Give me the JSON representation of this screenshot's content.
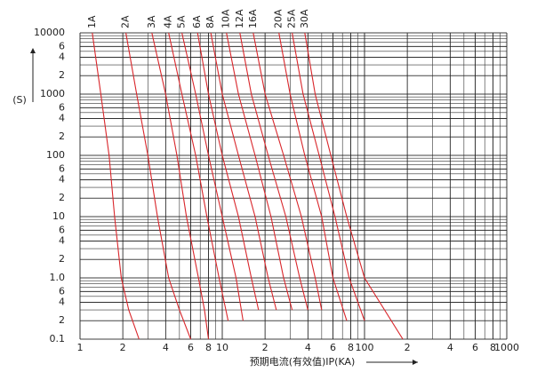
{
  "chart_data": {
    "type": "line",
    "x_label": "预期电流(有效值)IP(KA)",
    "y_label": "(S)",
    "log_x": true,
    "log_y": true,
    "grid": true,
    "xlim": [
      1,
      1000
    ],
    "xticks": [
      1,
      2,
      4,
      6,
      8,
      10,
      {
        "value": 20,
        "label": "2"
      },
      {
        "value": 40,
        "label": "4"
      },
      {
        "value": 60,
        "label": "6"
      },
      {
        "value": 80,
        "label": "8"
      },
      100,
      {
        "value": 200,
        "label": "2"
      },
      {
        "value": 400,
        "label": "4"
      },
      {
        "value": 600,
        "label": "6"
      },
      {
        "value": 800,
        "label": "8"
      },
      1000
    ],
    "ylim": [
      0.1,
      10000
    ],
    "yticks": [
      0.1,
      {
        "value": 0.2,
        "label": "2"
      },
      {
        "value": 0.4,
        "label": "4"
      },
      {
        "value": 0.6,
        "label": "6"
      },
      {
        "value": 1,
        "label": "1.0"
      },
      2,
      4,
      6,
      10,
      {
        "value": 20,
        "label": "2"
      },
      {
        "value": 40,
        "label": "4"
      },
      {
        "value": 60,
        "label": "6"
      },
      100,
      {
        "value": 200,
        "label": "2"
      },
      {
        "value": 400,
        "label": "4"
      },
      {
        "value": 600,
        "label": "6"
      },
      1000,
      {
        "value": 2000,
        "label": "2"
      },
      {
        "value": 4000,
        "label": "4"
      },
      {
        "value": 6000,
        "label": "6"
      },
      10000
    ],
    "series": [
      {
        "name": "1A",
        "color": "#d9262b",
        "x": [
          1.22,
          1.4,
          1.6,
          1.75,
          1.95,
          2.2,
          2.6
        ],
        "values": [
          10000,
          1000,
          100,
          10,
          1,
          0.3,
          0.1
        ]
      },
      {
        "name": "2A",
        "color": "#d9262b",
        "x": [
          2.1,
          2.5,
          3,
          3.5,
          4.2,
          5,
          6
        ],
        "values": [
          10000,
          1000,
          100,
          10,
          1,
          0.3,
          0.1
        ]
      },
      {
        "name": "3A",
        "color": "#d9262b",
        "x": [
          3.2,
          4,
          4.8,
          5.6,
          6.8,
          7.5,
          8
        ],
        "values": [
          10000,
          1000,
          100,
          10,
          1,
          0.3,
          0.1
        ]
      },
      {
        "name": "4A",
        "color": "#d9262b",
        "x": [
          4.2,
          5.2,
          6.5,
          7.8,
          9.5,
          11
        ],
        "values": [
          10000,
          1000,
          100,
          10,
          1,
          0.2
        ]
      },
      {
        "name": "5A",
        "color": "#d9262b",
        "x": [
          5.2,
          6.5,
          8,
          10,
          12.5,
          14
        ],
        "values": [
          10000,
          1000,
          100,
          10,
          1,
          0.2
        ]
      },
      {
        "name": "6A",
        "color": "#d9262b",
        "x": [
          6.7,
          8,
          10,
          13,
          16,
          18
        ],
        "values": [
          10000,
          1000,
          100,
          10,
          1,
          0.3
        ]
      },
      {
        "name": "8A",
        "color": "#d9262b",
        "x": [
          8.3,
          10,
          13,
          17,
          21,
          24
        ],
        "values": [
          10000,
          1000,
          100,
          10,
          1,
          0.3
        ]
      },
      {
        "name": "10A",
        "color": "#d9262b",
        "x": [
          10.7,
          13,
          17,
          22,
          27,
          31
        ],
        "values": [
          10000,
          1000,
          100,
          10,
          1,
          0.3
        ]
      },
      {
        "name": "12A",
        "color": "#d9262b",
        "x": [
          13.3,
          16,
          21,
          28,
          35,
          40
        ],
        "values": [
          10000,
          1000,
          100,
          10,
          1,
          0.3
        ]
      },
      {
        "name": "16A",
        "color": "#d9262b",
        "x": [
          16.5,
          20,
          27,
          36,
          45,
          50
        ],
        "values": [
          10000,
          1000,
          100,
          10,
          1,
          0.3
        ]
      },
      {
        "name": "20A",
        "color": "#d9262b",
        "x": [
          25,
          30,
          38,
          50,
          60,
          75
        ],
        "values": [
          10000,
          1000,
          100,
          10,
          1,
          0.2
        ]
      },
      {
        "name": "25A",
        "color": "#d9262b",
        "x": [
          31,
          37,
          48,
          62,
          78,
          100
        ],
        "values": [
          10000,
          1000,
          100,
          10,
          1,
          0.2
        ]
      },
      {
        "name": "30A",
        "color": "#d9262b",
        "x": [
          38,
          45,
          58,
          75,
          100,
          186
        ],
        "values": [
          10000,
          1000,
          100,
          10,
          1,
          0.1
        ]
      }
    ]
  }
}
